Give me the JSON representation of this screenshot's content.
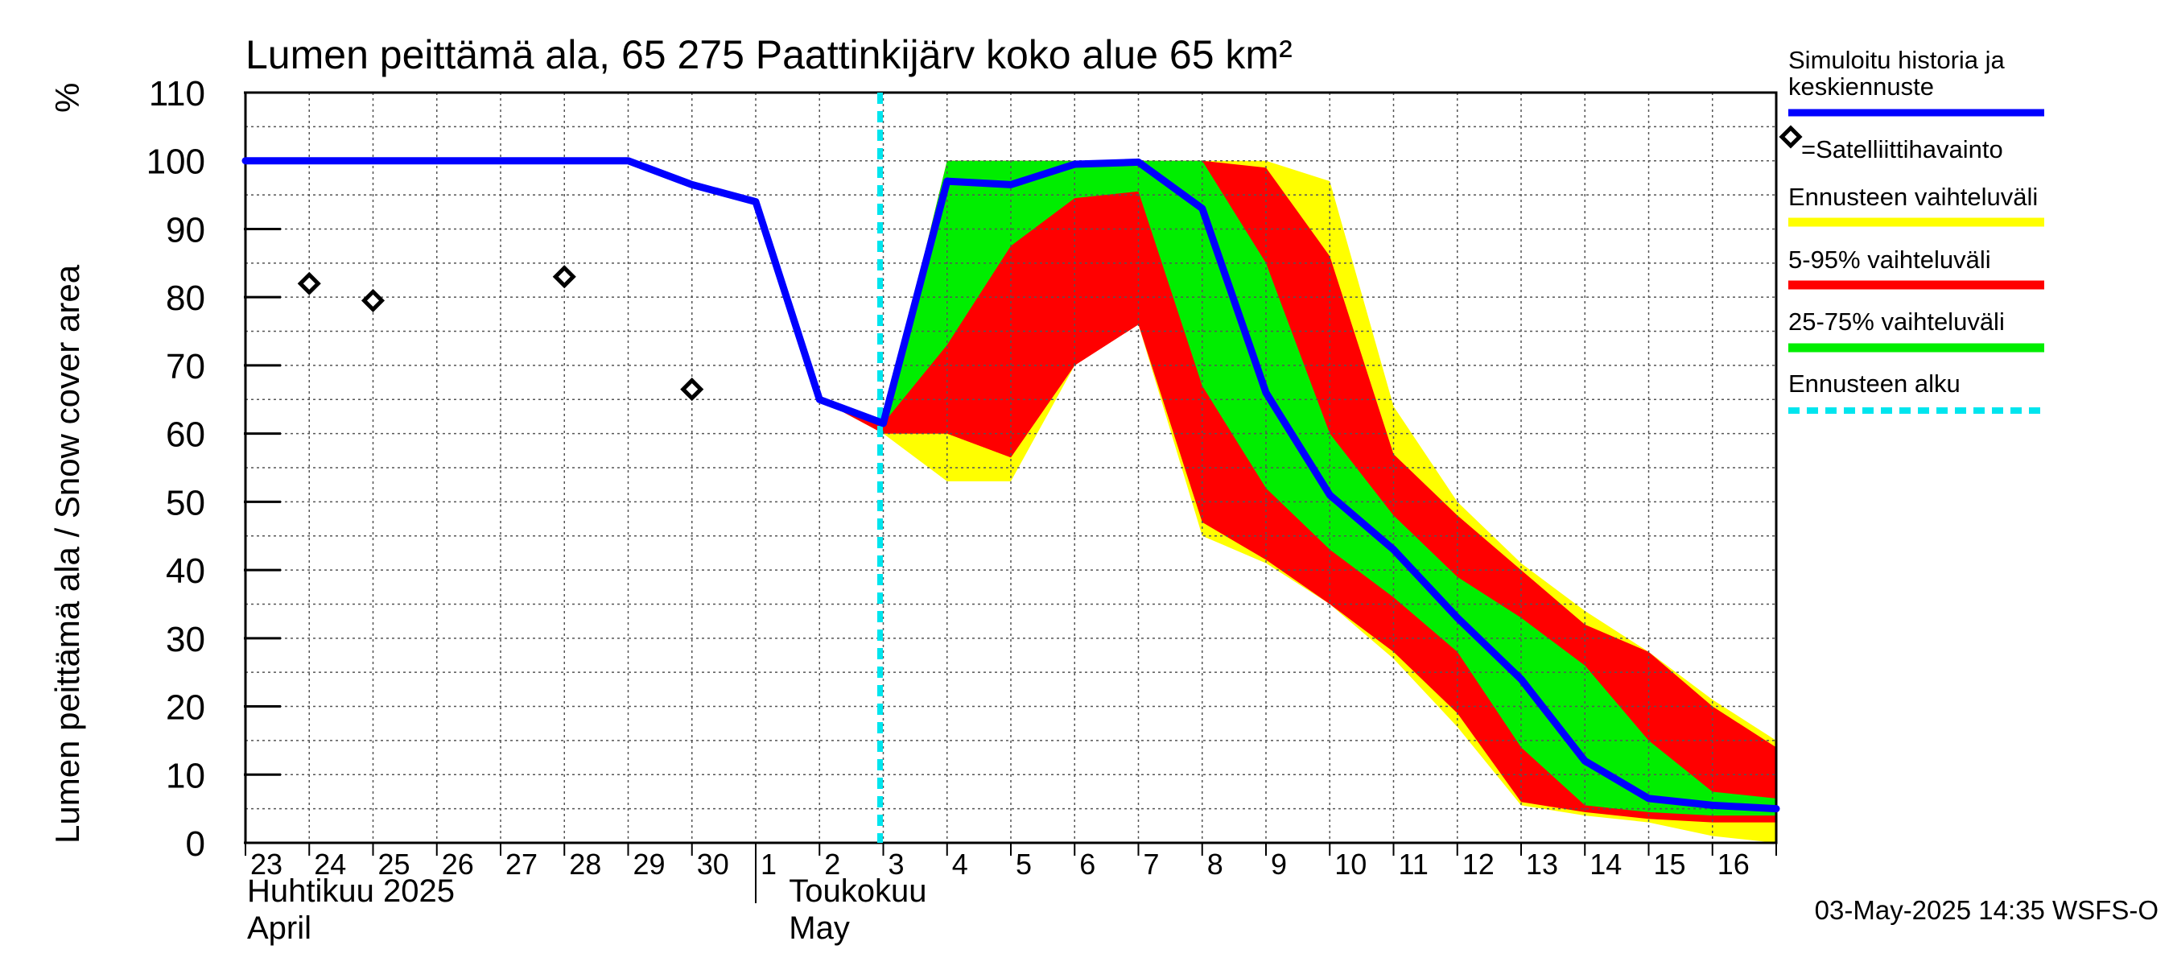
{
  "chart_data": {
    "type": "area",
    "title": "Lumen peittämä ala, 65 275 Paattinkijärv koko alue 65 km²",
    "ylabel": "Lumen peittämä ala / Snow cover area",
    "yunit": "%",
    "ylim": [
      0,
      110
    ],
    "yticks": [
      0,
      10,
      20,
      30,
      40,
      50,
      60,
      70,
      80,
      90,
      100,
      110
    ],
    "xlim": [
      0,
      24
    ],
    "xtick_labels": [
      "23",
      "24",
      "25",
      "26",
      "27",
      "28",
      "29",
      "30",
      "1",
      "2",
      "3",
      "4",
      "5",
      "6",
      "7",
      "8",
      "9",
      "10",
      "11",
      "12",
      "13",
      "14",
      "15",
      "16"
    ],
    "month_labels": [
      {
        "line1": "Huhtikuu  2025",
        "line2": "April"
      },
      {
        "line1": "Toukokuu",
        "line2": "May"
      }
    ],
    "forecast_start_x": 10,
    "timestamp": "03-May-2025 14:35 WSFS-O",
    "series": [
      {
        "name": "Simuloitu historia ja keskiennuste",
        "color": "#0000ff",
        "x": [
          0,
          1,
          2,
          3,
          4,
          5,
          6,
          7,
          8,
          9,
          10,
          11,
          12,
          13,
          14,
          15,
          16,
          17,
          18,
          19,
          20,
          21,
          22,
          23,
          24
        ],
        "values": [
          100,
          100,
          100,
          100,
          100,
          100,
          100,
          96.5,
          94,
          65,
          61.5,
          97,
          96.5,
          99.5,
          99.8,
          93,
          66,
          51,
          43,
          33,
          24,
          12,
          6.5,
          5.5,
          5
        ]
      },
      {
        "name": "=Satelliittihavainto",
        "type": "scatter",
        "color": "#000000",
        "x": [
          1,
          2,
          5,
          7
        ],
        "values": [
          82,
          79.5,
          83,
          66.5
        ]
      }
    ],
    "bands": [
      {
        "name": "Ennusteen vaihteluväli",
        "color": "#ffff00",
        "x": [
          9,
          10,
          11,
          12,
          13,
          14,
          15,
          16,
          17,
          18,
          19,
          20,
          21,
          22,
          23,
          24
        ],
        "upper": [
          65,
          61.5,
          100,
          100,
          100,
          100,
          100,
          100,
          97,
          64,
          50,
          41,
          34,
          28,
          21,
          15
        ],
        "lower": [
          65,
          60,
          53,
          53,
          70,
          76,
          45,
          41,
          35,
          27,
          17,
          5.5,
          4,
          3,
          1,
          0
        ]
      },
      {
        "name": "5-95% vaihteluväli",
        "color": "#ff0000",
        "x": [
          9,
          10,
          11,
          12,
          13,
          14,
          15,
          16,
          17,
          18,
          19,
          20,
          21,
          22,
          23,
          24
        ],
        "upper": [
          65,
          61.5,
          100,
          100,
          100,
          100,
          100,
          99,
          86,
          57,
          48,
          40,
          32,
          28,
          20,
          14
        ],
        "lower": [
          65,
          60,
          60,
          56.5,
          70,
          76,
          47,
          41.5,
          35,
          28,
          19,
          6,
          4.5,
          3.5,
          3,
          3
        ]
      },
      {
        "name": "25-75% vaihteluväli",
        "color": "#00ee00",
        "x": [
          10,
          11,
          12,
          13,
          14,
          15,
          16,
          17,
          18,
          19,
          20,
          21,
          22,
          23,
          24
        ],
        "upper": [
          61.5,
          100,
          100,
          100,
          100,
          100,
          85,
          60,
          48,
          39,
          33,
          26,
          15,
          7.5,
          6.5
        ],
        "lower": [
          60,
          73,
          87.5,
          94.5,
          95.5,
          67,
          52,
          43,
          36,
          28,
          14,
          5.5,
          4.5,
          4,
          4
        ]
      }
    ],
    "inner_red": {
      "x": [
        10,
        11,
        12,
        13,
        14
      ],
      "upper": [
        61.5,
        73,
        87.5,
        94.5,
        95.5
      ],
      "lower": [
        60,
        60,
        56.5,
        70,
        76
      ]
    },
    "legend": [
      {
        "label": "Simuloitu historia ja keskiennuste",
        "kind": "line",
        "color": "#0000ff"
      },
      {
        "label": "=Satelliittihavainto",
        "kind": "marker",
        "color": "#000000"
      },
      {
        "label": "Ennusteen vaihteluväli",
        "kind": "line",
        "color": "#ffff00"
      },
      {
        "label": "5-95% vaihteluväli",
        "kind": "line",
        "color": "#ff0000"
      },
      {
        "label": "25-75% vaihteluväli",
        "kind": "line",
        "color": "#00ee00"
      },
      {
        "label": "Ennusteen alku",
        "kind": "dashed",
        "color": "#00e5ee"
      }
    ]
  }
}
